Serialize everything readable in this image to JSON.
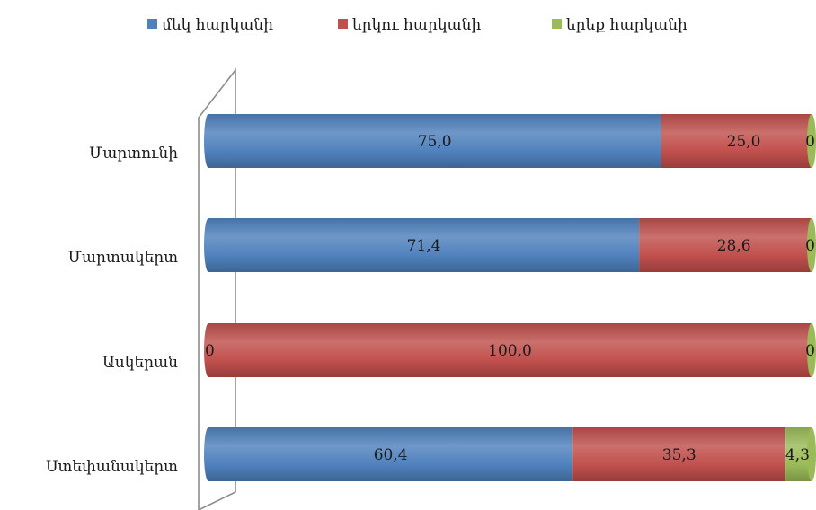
{
  "chart_data": {
    "type": "bar",
    "orientation": "horizontal",
    "stacked": "percent",
    "categories": [
      "Մարտունի",
      "Մարտակերտ",
      "Ասկերան",
      "Ստեփանակերտ"
    ],
    "series": [
      {
        "name": "մեկ հարկանի",
        "values": [
          75.0,
          71.4,
          0,
          60.4
        ],
        "labels": [
          "75,0",
          "71,4",
          "0",
          "60,4"
        ],
        "color": "#4f81bd"
      },
      {
        "name": "երկու հարկանի",
        "values": [
          25.0,
          28.6,
          100.0,
          35.3
        ],
        "labels": [
          "25,0",
          "28,6",
          "100,0",
          "35,3"
        ],
        "color": "#c0504d"
      },
      {
        "name": "երեք հարկանի",
        "values": [
          0,
          0,
          0,
          4.3
        ],
        "labels": [
          "0",
          "0",
          "0",
          "4,3"
        ],
        "color": "#9bbb59"
      }
    ],
    "xlim": [
      0,
      100
    ],
    "legend_position": "top",
    "grid": false
  }
}
